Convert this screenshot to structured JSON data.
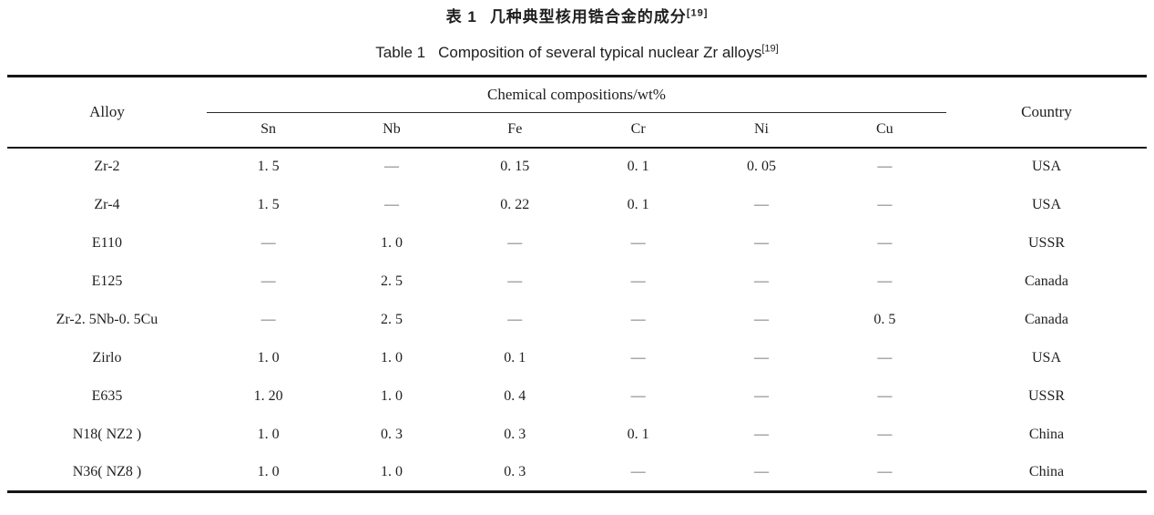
{
  "colors": {
    "background": "#ffffff",
    "text": "#1f1f1f",
    "rule": "#161616",
    "dash": "#555555"
  },
  "caption": {
    "zh": {
      "label": "表 1",
      "text": "几种典型核用锆合金的成分",
      "ref": "[19]"
    },
    "en": {
      "label": "Table 1",
      "text": "Composition of several typical nuclear Zr alloys",
      "ref": "[19]"
    }
  },
  "table": {
    "header": {
      "alloy": "Alloy",
      "group": "Chemical compositions/wt%",
      "elements": [
        "Sn",
        "Nb",
        "Fe",
        "Cr",
        "Ni",
        "Cu"
      ],
      "country": "Country"
    },
    "empty_marker": "—",
    "rows": [
      {
        "alloy": "Zr-2",
        "values": [
          "1. 5",
          "—",
          "0. 15",
          "0. 1",
          "0. 05",
          "—"
        ],
        "country": "USA"
      },
      {
        "alloy": "Zr-4",
        "values": [
          "1. 5",
          "—",
          "0. 22",
          "0. 1",
          "—",
          "—"
        ],
        "country": "USA"
      },
      {
        "alloy": "E110",
        "values": [
          "—",
          "1. 0",
          "—",
          "—",
          "—",
          "—"
        ],
        "country": "USSR"
      },
      {
        "alloy": "E125",
        "values": [
          "—",
          "2. 5",
          "—",
          "—",
          "—",
          "—"
        ],
        "country": "Canada"
      },
      {
        "alloy": "Zr-2. 5Nb-0. 5Cu",
        "values": [
          "—",
          "2. 5",
          "—",
          "—",
          "—",
          "0. 5"
        ],
        "country": "Canada"
      },
      {
        "alloy": "Zirlo",
        "values": [
          "1. 0",
          "1. 0",
          "0. 1",
          "—",
          "—",
          "—"
        ],
        "country": "USA"
      },
      {
        "alloy": "E635",
        "values": [
          "1. 20",
          "1. 0",
          "0. 4",
          "—",
          "—",
          "—"
        ],
        "country": "USSR"
      },
      {
        "alloy": "N18( NZ2 )",
        "values": [
          "1. 0",
          "0. 3",
          "0. 3",
          "0. 1",
          "—",
          "—"
        ],
        "country": "China"
      },
      {
        "alloy": "N36( NZ8 )",
        "values": [
          "1. 0",
          "1. 0",
          "0. 3",
          "—",
          "—",
          "—"
        ],
        "country": "China"
      }
    ]
  }
}
